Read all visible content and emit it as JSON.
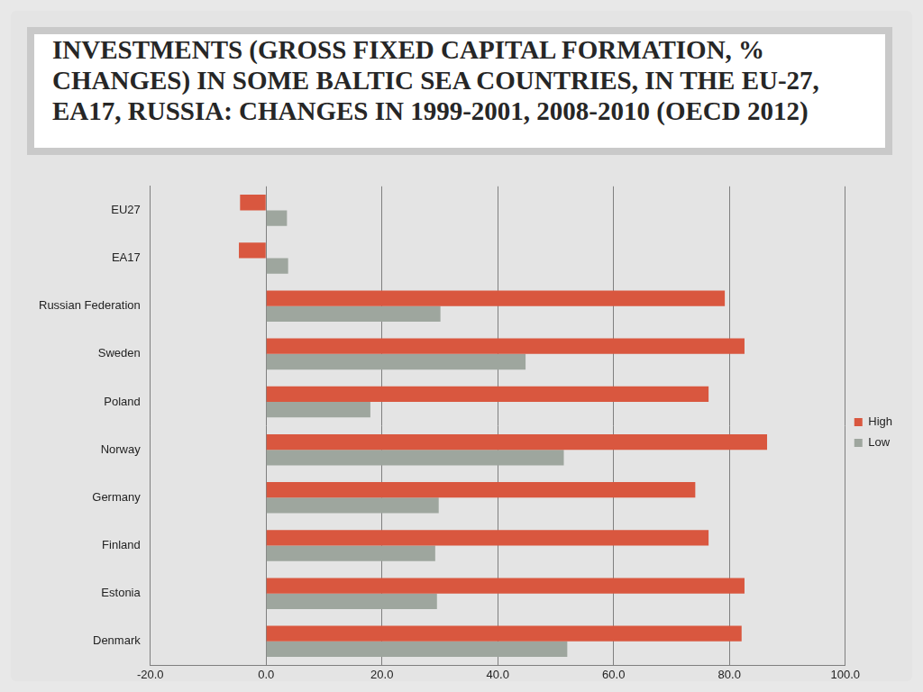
{
  "chart_data": {
    "type": "bar",
    "orientation": "horizontal",
    "title": "INVESTMENTS (GROSS FIXED CAPITAL FORMATION, % CHANGES) IN SOME BALTIC SEA COUNTRIES, IN THE EU-27, EA17, RUSSIA: CHANGES IN 1999-2001, 2008-2010 (OECD 2012)",
    "categories": [
      "EU27",
      "EA17",
      "Russian Federation",
      "Sweden",
      "Poland",
      "Norway",
      "Germany",
      "Finland",
      "Estonia",
      "Denmark"
    ],
    "series": [
      {
        "name": "High",
        "color": "#d9573f",
        "values": [
          -4.5,
          -4.7,
          79.2,
          82.6,
          76.4,
          86.5,
          74.1,
          76.4,
          82.6,
          82.1
        ]
      },
      {
        "name": "Low",
        "color": "#9ea69e",
        "values": [
          3.6,
          3.8,
          30.1,
          44.8,
          18.0,
          51.4,
          29.8,
          29.2,
          29.5,
          52.0
        ]
      }
    ],
    "xlim": [
      -20,
      100
    ],
    "xticks": [
      {
        "value": -20,
        "label": "-20.0"
      },
      {
        "value": 0,
        "label": "0.0"
      },
      {
        "value": 20,
        "label": "20.0"
      },
      {
        "value": 40,
        "label": "40.0"
      },
      {
        "value": 60,
        "label": "60.0"
      },
      {
        "value": 80,
        "label": "80.0"
      },
      {
        "value": 100,
        "label": "100.0"
      }
    ],
    "grid": true,
    "legend": "right"
  }
}
